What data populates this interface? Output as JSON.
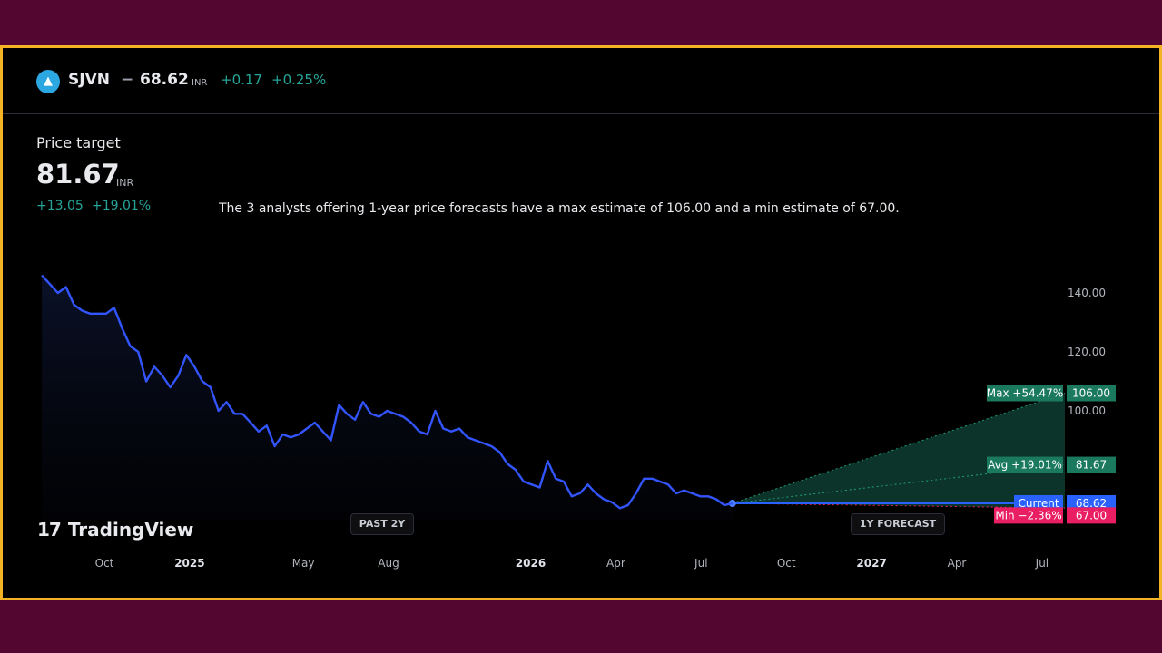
{
  "header": {
    "logo_icon": "sjvn-logo-icon",
    "ticker": "SJVN",
    "separator": "−",
    "price": "68.62",
    "currency": "INR",
    "change": "+0.17",
    "change_pct": "+0.25%"
  },
  "price_target": {
    "label": "Price target",
    "value": "81.67",
    "currency": "INR",
    "change": "+13.05",
    "change_pct": "+19.01%"
  },
  "description": "The 3 analysts offering 1-year price forecasts have a max estimate of 106.00 and a min estimate of 67.00.",
  "buttons": {
    "past": "PAST 2Y",
    "forecast": "1Y FORECAST"
  },
  "brand": {
    "mark": "17",
    "name": "TradingView"
  },
  "colors": {
    "price_line": "#3355ff",
    "max": "#1b7a5e",
    "avg": "#1b7a5e",
    "current": "#2962ff",
    "min": "#e91e63",
    "positive": "#26a69a",
    "frame": "#f4b324",
    "background": "#530630"
  },
  "chart_data": {
    "type": "line",
    "y_ticks": [
      "140.00",
      "120.00",
      "100.00",
      "80.00"
    ],
    "y_tick_values": [
      140,
      120,
      100,
      80
    ],
    "x_ticks": [
      {
        "label": "Oct",
        "bold": false
      },
      {
        "label": "2025",
        "bold": true
      },
      {
        "label": "May",
        "bold": false
      },
      {
        "label": "Aug",
        "bold": false
      },
      {
        "label": "2026",
        "bold": true
      },
      {
        "label": "Apr",
        "bold": false
      },
      {
        "label": "Jul",
        "bold": false
      },
      {
        "label": "Oct",
        "bold": false
      },
      {
        "label": "2027",
        "bold": true
      },
      {
        "label": "Apr",
        "bold": false
      },
      {
        "label": "Jul",
        "bold": false
      }
    ],
    "x_tick_months": [
      3,
      6,
      10,
      13,
      18,
      21,
      24,
      27,
      30,
      33,
      36
    ],
    "history": {
      "month_start": 0.8,
      "month_end": 25.1,
      "values": [
        146,
        143,
        140,
        142,
        136,
        134,
        133,
        133,
        133,
        135,
        128,
        122,
        120,
        110,
        115,
        112,
        108,
        112,
        119,
        115,
        110,
        108,
        100,
        103,
        99,
        99,
        96,
        93,
        95,
        88,
        92,
        91,
        92,
        94,
        96,
        93,
        90,
        102,
        99,
        97,
        103,
        99,
        98,
        100,
        99,
        98,
        96,
        93,
        92,
        100,
        94,
        93,
        94,
        91,
        90,
        89,
        88,
        86,
        82,
        80,
        76,
        75,
        74,
        83,
        77,
        76,
        71,
        72,
        75,
        72,
        70,
        69,
        67,
        68,
        72,
        77,
        77,
        76,
        75,
        72,
        73,
        72,
        71,
        71,
        70,
        68,
        68.62
      ]
    },
    "forecast": {
      "start_month": 25.1,
      "end_month": 37,
      "current": 68.62,
      "max": 106.0,
      "avg": 81.67,
      "min": 67.0
    },
    "labels": {
      "max": {
        "text": "Max +54.47%",
        "value": "106.00"
      },
      "avg": {
        "text": "Avg +19.01%",
        "value": "81.67"
      },
      "current": {
        "text": "Current",
        "value": "68.62"
      },
      "min": {
        "text": "Min −2.36%",
        "value": "67.00"
      }
    }
  }
}
